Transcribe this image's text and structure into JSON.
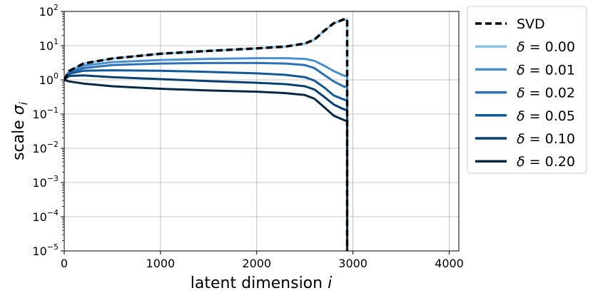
{
  "chart_data": {
    "type": "line",
    "xlabel": "latent dimension",
    "xlabel_var": "i",
    "ylabel": "scale",
    "ylabel_var": "σ",
    "ylabel_sub": "i",
    "xlim": [
      0,
      4100
    ],
    "ylim": [
      1e-05,
      100
    ],
    "yscale": "log",
    "grid": true,
    "legend_position": "outside-right-top",
    "x_ticks": [
      {
        "value": 0,
        "label": "0"
      },
      {
        "value": 1000,
        "label": "1000"
      },
      {
        "value": 2000,
        "label": "2000"
      },
      {
        "value": 3000,
        "label": "3000"
      },
      {
        "value": 4000,
        "label": "4000"
      }
    ],
    "y_ticks": [
      {
        "value": 100,
        "base": "10",
        "exp": "2"
      },
      {
        "value": 10,
        "base": "10",
        "exp": "1"
      },
      {
        "value": 1,
        "base": "10",
        "exp": "0"
      },
      {
        "value": 0.1,
        "base": "10",
        "exp": "−1"
      },
      {
        "value": 0.01,
        "base": "10",
        "exp": "−2"
      },
      {
        "value": 0.001,
        "base": "10",
        "exp": "−3"
      },
      {
        "value": 0.0001,
        "base": "10",
        "exp": "−4"
      },
      {
        "value": 1e-05,
        "base": "10",
        "exp": "−5"
      }
    ],
    "cutoff_x": 2940,
    "series": [
      {
        "name": "SVD",
        "legend_text": "SVD",
        "color": "#000000",
        "dashed": true,
        "x": [
          0,
          50,
          200,
          500,
          1000,
          1500,
          2000,
          2300,
          2500,
          2600,
          2700,
          2800,
          2900,
          2940,
          2940
        ],
        "y": [
          1.0,
          1.8,
          3.0,
          4.2,
          5.8,
          7.0,
          8.3,
          9.4,
          11.5,
          15,
          27,
          45,
          58,
          60,
          1e-05
        ]
      },
      {
        "name": "δ = 0.00",
        "legend_sym": "δ",
        "legend_val": " = 0.00",
        "color": "#89c2ea",
        "dashed": false,
        "x": [
          0,
          50,
          200,
          500,
          1000,
          1500,
          2000,
          2300,
          2500,
          2600,
          2700,
          2800,
          2900,
          2940,
          2940
        ],
        "y": [
          1.0,
          1.8,
          3.0,
          4.2,
          5.8,
          7.0,
          8.3,
          9.4,
          11.5,
          15,
          27,
          45,
          57,
          59,
          1e-05
        ]
      },
      {
        "name": "δ = 0.01",
        "legend_sym": "δ",
        "legend_val": " = 0.01",
        "color": "#4a90d0",
        "dashed": false,
        "x": [
          0,
          50,
          200,
          500,
          1000,
          1500,
          2000,
          2300,
          2500,
          2600,
          2700,
          2800,
          2900,
          2940,
          2940
        ],
        "y": [
          1.0,
          1.7,
          2.6,
          3.3,
          3.8,
          4.1,
          4.3,
          4.3,
          4.1,
          3.6,
          2.6,
          1.8,
          1.35,
          1.25,
          1e-05
        ]
      },
      {
        "name": "δ = 0.02",
        "legend_sym": "δ",
        "legend_val": " = 0.02",
        "color": "#2e70b4",
        "dashed": false,
        "x": [
          0,
          50,
          200,
          500,
          1000,
          1500,
          2000,
          2300,
          2500,
          2600,
          2700,
          2800,
          2900,
          2940,
          2940
        ],
        "y": [
          1.0,
          1.6,
          2.2,
          2.7,
          3.0,
          3.1,
          3.1,
          3.0,
          2.7,
          2.2,
          1.4,
          0.9,
          0.65,
          0.6,
          1e-05
        ]
      },
      {
        "name": "δ = 0.05",
        "legend_sym": "δ",
        "legend_val": " = 0.05",
        "color": "#125998",
        "dashed": false,
        "x": [
          0,
          50,
          200,
          500,
          1000,
          1500,
          2000,
          2300,
          2500,
          2600,
          2700,
          2800,
          2900,
          2940,
          2940
        ],
        "y": [
          1.0,
          1.5,
          1.85,
          1.9,
          1.85,
          1.7,
          1.55,
          1.4,
          1.2,
          0.95,
          0.6,
          0.35,
          0.27,
          0.25,
          1e-05
        ]
      },
      {
        "name": "δ = 0.10",
        "legend_sym": "δ",
        "legend_val": " = 0.10",
        "color": "#073f70",
        "dashed": false,
        "x": [
          0,
          50,
          200,
          500,
          1000,
          1500,
          2000,
          2300,
          2500,
          2600,
          2700,
          2800,
          2900,
          2940,
          2940
        ],
        "y": [
          1.0,
          1.3,
          1.35,
          1.2,
          1.05,
          0.92,
          0.82,
          0.75,
          0.65,
          0.52,
          0.32,
          0.19,
          0.14,
          0.13,
          1e-05
        ]
      },
      {
        "name": "δ = 0.20",
        "legend_sym": "δ",
        "legend_val": " = 0.20",
        "color": "#052944",
        "dashed": false,
        "x": [
          0,
          50,
          200,
          500,
          1000,
          1500,
          2000,
          2300,
          2500,
          2600,
          2700,
          2800,
          2900,
          2940,
          2940
        ],
        "y": [
          1.0,
          0.9,
          0.78,
          0.65,
          0.55,
          0.49,
          0.45,
          0.41,
          0.36,
          0.28,
          0.16,
          0.09,
          0.068,
          0.062,
          1e-05
        ]
      }
    ]
  }
}
